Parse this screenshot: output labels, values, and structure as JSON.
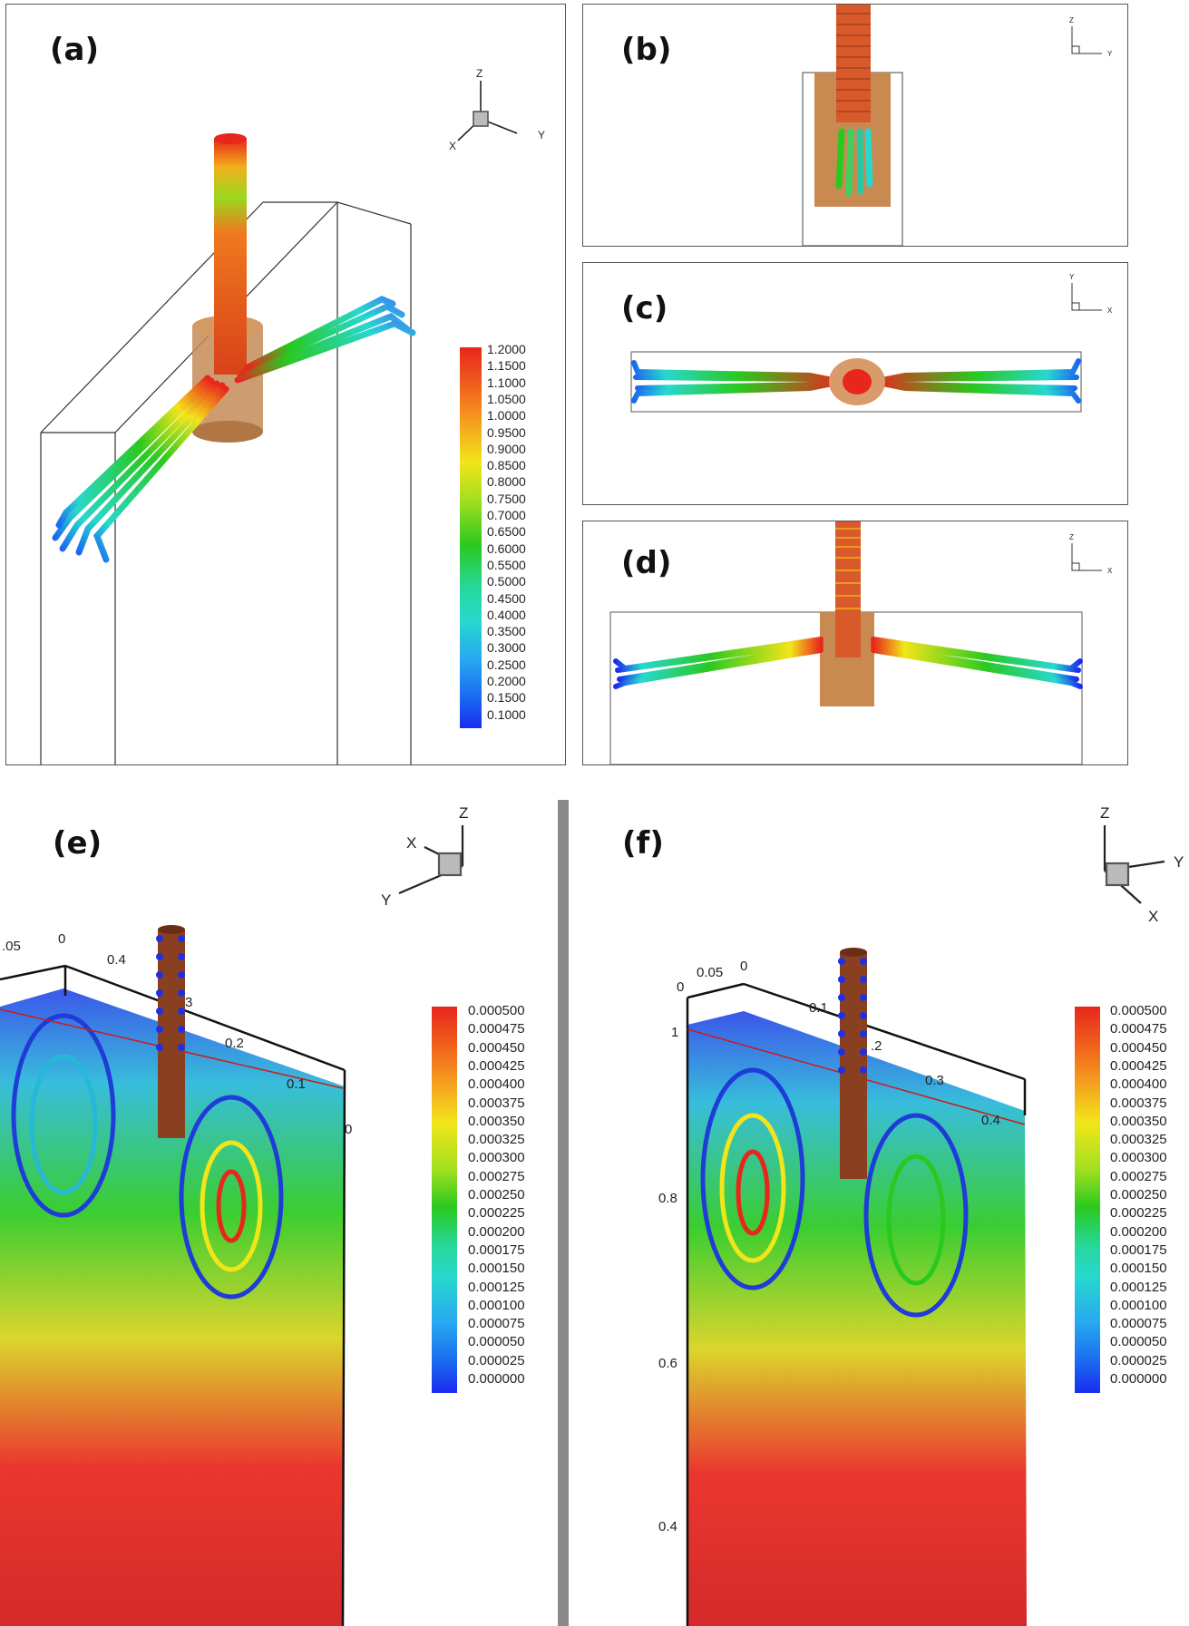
{
  "panels": {
    "a": {
      "label": "(a)"
    },
    "b": {
      "label": "(b)"
    },
    "c": {
      "label": "(c)"
    },
    "d": {
      "label": "(d)"
    },
    "e": {
      "label": "(e)"
    },
    "f": {
      "label": "(f)"
    }
  },
  "axes": {
    "x": "X",
    "y": "Y",
    "z": "Z"
  },
  "ticks_e": {
    "top_a": ".05",
    "top_b": "0",
    "top_c": "0.4",
    "top_d": "3",
    "top_e": "0.2",
    "top_f": "0.1",
    "top_g": "0"
  },
  "ticks_f": {
    "a": "0",
    "b": "0.05",
    "c": "0",
    "d": "0.1",
    "e": ".2",
    "f": "0.3",
    "g": "0.4",
    "z1": "1",
    "z08": "0.8",
    "z06": "0.6",
    "z04": "0.4"
  },
  "colorbar_velocity": [
    "1.2000",
    "1.1500",
    "1.1000",
    "1.0500",
    "1.0000",
    "0.9500",
    "0.9000",
    "0.8500",
    "0.8000",
    "0.7500",
    "0.7000",
    "0.6500",
    "0.6000",
    "0.5500",
    "0.5000",
    "0.4500",
    "0.4000",
    "0.3500",
    "0.3000",
    "0.2500",
    "0.2000",
    "0.1500",
    "0.1000"
  ],
  "colorbar_small": [
    "0.000500",
    "0.000475",
    "0.000450",
    "0.000425",
    "0.000400",
    "0.000375",
    "0.000350",
    "0.000325",
    "0.000300",
    "0.000275",
    "0.000250",
    "0.000225",
    "0.000200",
    "0.000175",
    "0.000150",
    "0.000125",
    "0.000100",
    "0.000075",
    "0.000050",
    "0.000025",
    "0.000000"
  ],
  "colors": {
    "red": "#e8261c",
    "orange": "#f58a1f",
    "yellow": "#f2e51a",
    "green": "#29c91f",
    "cyan": "#27d8cf",
    "blue": "#1a2cf0",
    "copper": "#b87b4a"
  }
}
